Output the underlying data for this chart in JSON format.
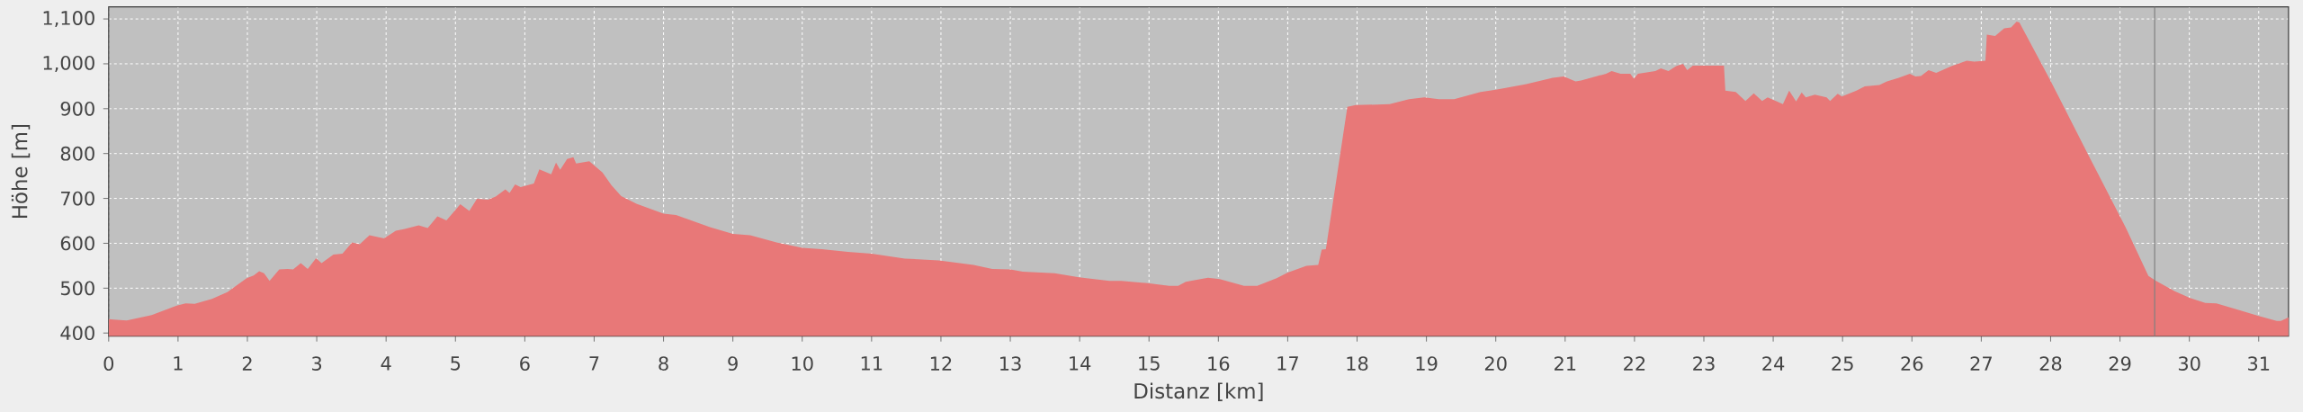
{
  "chart_data": {
    "type": "area",
    "xlabel": "Distanz [km]",
    "ylabel": "Höhe [m]",
    "x": [
      0,
      0.07,
      0.26,
      0.62,
      0.98,
      1.11,
      1.24,
      1.49,
      1.71,
      1.99,
      2.09,
      2.17,
      2.24,
      2.32,
      2.46,
      2.58,
      2.66,
      2.77,
      2.87,
      2.99,
      3.07,
      3.24,
      3.37,
      3.51,
      3.62,
      3.76,
      3.97,
      4.14,
      4.27,
      4.47,
      4.6,
      4.74,
      4.87,
      5.07,
      5.2,
      5.31,
      5.47,
      5.58,
      5.72,
      5.78,
      5.86,
      5.94,
      6.13,
      6.21,
      6.38,
      6.45,
      6.51,
      6.61,
      6.7,
      6.74,
      6.93,
      7.12,
      7.25,
      7.39,
      7.61,
      8.0,
      8.18,
      8.67,
      9.0,
      9.25,
      9.63,
      10.0,
      10.28,
      10.66,
      11.0,
      11.48,
      11.97,
      12.47,
      12.74,
      13.0,
      13.18,
      13.64,
      13.99,
      14.43,
      14.6,
      14.98,
      15.29,
      15.42,
      15.53,
      15.85,
      16.02,
      16.37,
      16.56,
      16.84,
      17.0,
      17.27,
      17.44,
      17.49,
      17.55,
      17.86,
      17.98,
      18.47,
      18.75,
      18.97,
      19.18,
      19.4,
      19.78,
      20.0,
      20.44,
      20.82,
      20.98,
      21.15,
      21.23,
      21.59,
      21.67,
      21.8,
      21.94,
      21.99,
      22.05,
      22.3,
      22.38,
      22.49,
      22.6,
      22.7,
      22.76,
      22.84,
      23.29,
      23.31,
      23.46,
      23.6,
      23.72,
      23.84,
      23.92,
      24.14,
      24.23,
      24.33,
      24.41,
      24.47,
      24.6,
      24.77,
      24.82,
      24.93,
      24.99,
      25.2,
      25.32,
      25.53,
      25.64,
      25.81,
      25.97,
      26.05,
      26.13,
      26.24,
      26.35,
      26.57,
      26.79,
      26.9,
      27.06,
      27.08,
      27.2,
      27.33,
      27.43,
      27.51,
      27.55,
      27.99,
      28.53,
      29.08,
      29.41,
      29.52,
      29.79,
      30.01,
      30.23,
      30.39,
      30.72,
      31.0,
      31.26,
      31.32,
      31.43
    ],
    "values": [
      431,
      430,
      428,
      440,
      461,
      466,
      465,
      476,
      491,
      522,
      528,
      538,
      533,
      516,
      542,
      543,
      542,
      556,
      543,
      567,
      556,
      575,
      577,
      602,
      598,
      618,
      611,
      628,
      632,
      640,
      634,
      660,
      651,
      687,
      672,
      699,
      697,
      704,
      720,
      712,
      731,
      725,
      733,
      765,
      754,
      780,
      764,
      788,
      792,
      778,
      783,
      758,
      729,
      705,
      688,
      666,
      663,
      636,
      621,
      618,
      602,
      590,
      587,
      581,
      577,
      566,
      562,
      552,
      543,
      542,
      537,
      533,
      524,
      516,
      516,
      511,
      505,
      505,
      514,
      523,
      520,
      505,
      505,
      522,
      535,
      550,
      552,
      586,
      587,
      904,
      908,
      910,
      921,
      925,
      921,
      921,
      937,
      942,
      955,
      969,
      972,
      961,
      963,
      978,
      984,
      978,
      978,
      967,
      978,
      984,
      990,
      984,
      995,
      1000,
      986,
      996,
      996,
      940,
      937,
      917,
      934,
      917,
      925,
      910,
      940,
      916,
      936,
      925,
      931,
      925,
      917,
      933,
      927,
      940,
      950,
      953,
      961,
      969,
      978,
      972,
      973,
      986,
      980,
      995,
      1007,
      1005,
      1007,
      1065,
      1062,
      1079,
      1081,
      1094,
      1092,
      965,
      801,
      636,
      527,
      516,
      493,
      478,
      467,
      466,
      451,
      438,
      427,
      427,
      435
    ],
    "color": "#e87878",
    "xlim": [
      0,
      31.43
    ],
    "ylim": [
      393,
      1127
    ],
    "xticks": [
      0,
      1,
      2,
      3,
      4,
      5,
      6,
      7,
      8,
      9,
      10,
      11,
      12,
      13,
      14,
      15,
      16,
      17,
      18,
      19,
      20,
      21,
      22,
      23,
      24,
      25,
      26,
      27,
      28,
      29,
      30,
      31
    ],
    "yticks": [
      400,
      500,
      600,
      700,
      800,
      900,
      {
        "value": 1000,
        "label": "1,000"
      },
      {
        "value": 1100,
        "label": "1,100"
      }
    ],
    "grid": true,
    "ref_lines": [
      {
        "axis": "x",
        "value": 29.5,
        "color": "#808080"
      }
    ]
  }
}
